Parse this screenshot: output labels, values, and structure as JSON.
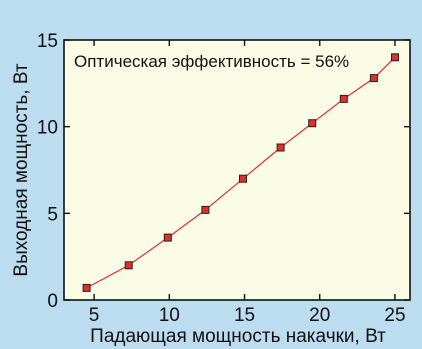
{
  "chart_data": {
    "type": "line",
    "xlabel": "Падающая мощность накачки, Вт",
    "ylabel": "Выходная мощность, Вт",
    "annotation": "Оптическая эффективность = 56%",
    "xlim": [
      3,
      26
    ],
    "ylim": [
      0,
      15
    ],
    "x_ticks": [
      5,
      10,
      15,
      20,
      25
    ],
    "y_ticks": [
      0,
      5,
      10,
      15
    ],
    "grid": false,
    "series": [
      {
        "x": [
          4.5,
          7.3,
          9.9,
          12.4,
          14.9,
          17.4,
          19.5,
          21.6,
          23.6,
          25.0
        ],
        "y": [
          0.7,
          2.0,
          3.6,
          5.2,
          7.0,
          8.8,
          10.2,
          11.6,
          12.8,
          14.0
        ]
      }
    ],
    "colors": {
      "line": "#d93030",
      "marker": "#e03028",
      "plot_background": "#fafce6",
      "figure_background": "#bcdcf0"
    }
  }
}
